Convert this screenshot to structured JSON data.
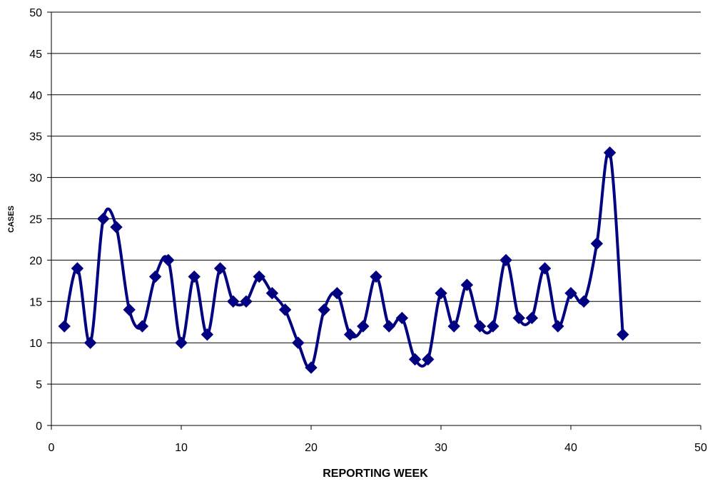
{
  "chart_data": {
    "type": "line",
    "title": "",
    "xlabel": "REPORTING WEEK",
    "ylabel": "CASES",
    "xlim": [
      0,
      50
    ],
    "ylim": [
      0,
      50
    ],
    "xticks": [
      "0",
      "10",
      "20",
      "30",
      "40",
      "50"
    ],
    "yticks": [
      "0",
      "5",
      "10",
      "15",
      "20",
      "25",
      "30",
      "35",
      "40",
      "45",
      "50"
    ],
    "grid": "horizontal",
    "legend": "none",
    "series": [
      {
        "color": "#000080",
        "marker": "diamond",
        "smooth": true,
        "x": [
          1,
          2,
          3,
          4,
          5,
          6,
          7,
          8,
          9,
          10,
          11,
          12,
          13,
          14,
          15,
          16,
          17,
          18,
          19,
          20,
          21,
          22,
          23,
          24,
          25,
          26,
          27,
          28,
          29,
          30,
          31,
          32,
          33,
          34,
          35,
          36,
          37,
          38,
          39,
          40,
          41,
          42,
          43,
          44
        ],
        "values": [
          12,
          19,
          10,
          25,
          24,
          14,
          12,
          18,
          20,
          10,
          18,
          11,
          19,
          15,
          15,
          18,
          16,
          14,
          10,
          7,
          14,
          16,
          11,
          12,
          18,
          12,
          13,
          8,
          8,
          16,
          12,
          17,
          12,
          12,
          20,
          13,
          13,
          19,
          12,
          16,
          15,
          22,
          33,
          11
        ]
      }
    ]
  }
}
